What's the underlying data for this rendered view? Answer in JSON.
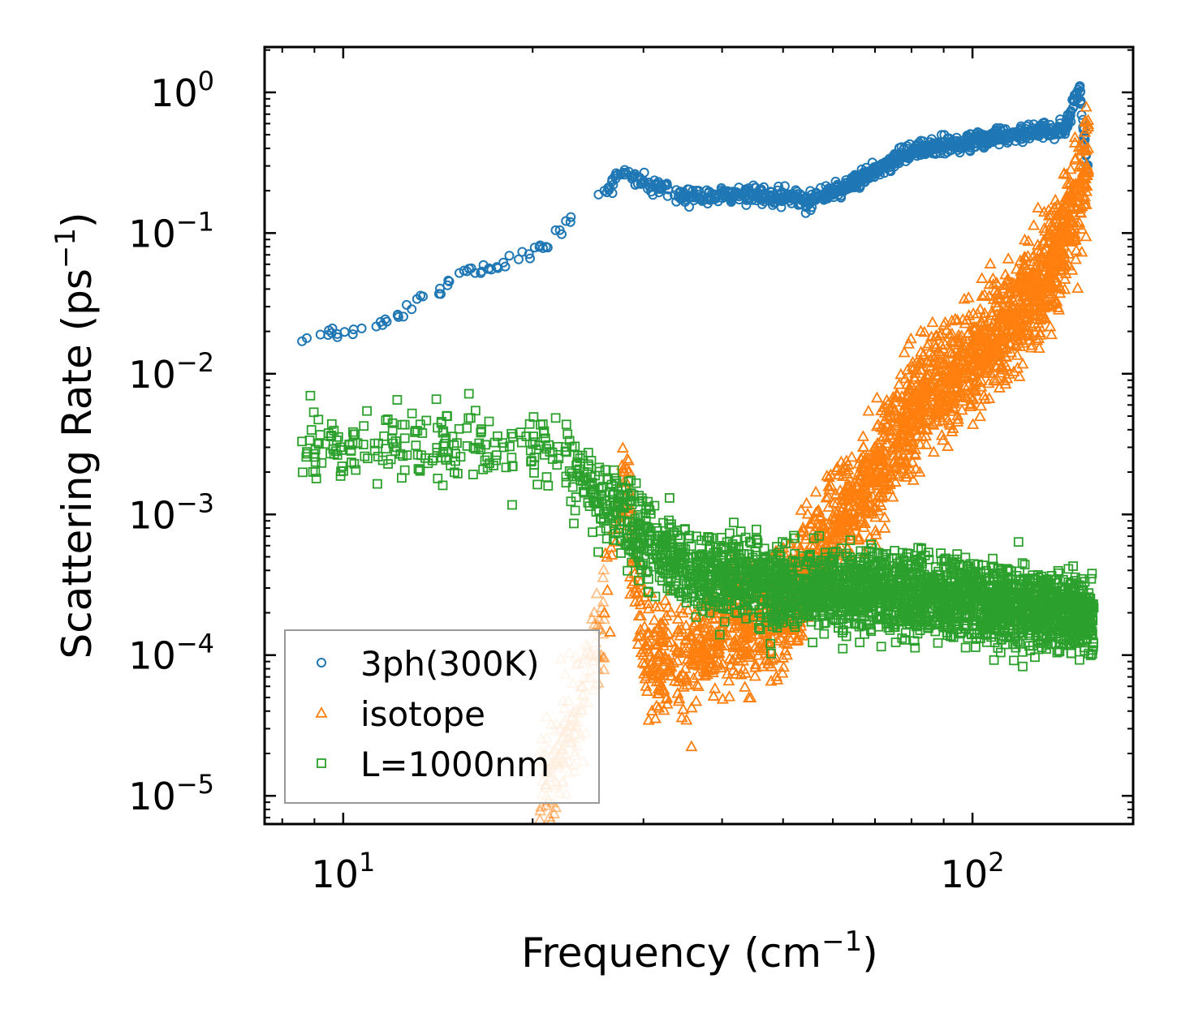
{
  "chart_data": {
    "type": "scatter",
    "title": "",
    "xlabel": "Frequency (cm",
    "xlabel_sup": "−1",
    "xlabel_end": ")",
    "ylabel": "Scattering Rate (ps",
    "ylabel_sup": "−1",
    "ylabel_end": ")",
    "xscale": "log",
    "yscale": "log",
    "xlim": [
      7.5,
      180
    ],
    "ylim": [
      6.3e-06,
      2.1
    ],
    "x_ticks": [
      {
        "value": 10,
        "base": "10",
        "exp": "1"
      },
      {
        "value": 100,
        "base": "10",
        "exp": "2"
      }
    ],
    "y_ticks": [
      {
        "value": 1,
        "base": "10",
        "exp": "0"
      },
      {
        "value": 0.1,
        "base": "10",
        "exp": "−1"
      },
      {
        "value": 0.01,
        "base": "10",
        "exp": "−2"
      },
      {
        "value": 0.001,
        "base": "10",
        "exp": "−3"
      },
      {
        "value": 0.0001,
        "base": "10",
        "exp": "−4"
      },
      {
        "value": 1e-05,
        "base": "10",
        "exp": "−5"
      }
    ],
    "legend_position": "lower-left",
    "series": [
      {
        "name": "3ph(300K)",
        "marker": "circle",
        "color": "#1f77b4",
        "sample_points": [
          [
            8.6,
            0.017
          ],
          [
            9.2,
            0.019
          ],
          [
            10.7,
            0.021
          ],
          [
            12.2,
            0.026
          ],
          [
            13.1,
            0.034
          ],
          [
            14.2,
            0.037
          ],
          [
            15.3,
            0.052
          ],
          [
            17.2,
            0.055
          ],
          [
            19.0,
            0.065
          ],
          [
            21.0,
            0.08
          ],
          [
            23.0,
            0.13
          ],
          [
            26.0,
            0.2
          ],
          [
            28.0,
            0.26
          ],
          [
            35.0,
            0.18
          ],
          [
            45.0,
            0.19
          ],
          [
            55.0,
            0.17
          ],
          [
            65.0,
            0.23
          ],
          [
            80.0,
            0.38
          ],
          [
            100.0,
            0.45
          ],
          [
            120.0,
            0.52
          ],
          [
            140.0,
            0.55
          ],
          [
            148.0,
            1.1
          ],
          [
            152.0,
            0.3
          ]
        ]
      },
      {
        "name": "isotope",
        "marker": "triangle",
        "color": "#ff7f0e",
        "sample_points": [
          [
            21.0,
            1.2e-05
          ],
          [
            24.0,
            6e-05
          ],
          [
            26.0,
            0.0002
          ],
          [
            28.0,
            0.002
          ],
          [
            30.0,
            0.0001
          ],
          [
            33.0,
            8e-05
          ],
          [
            40.0,
            0.00015
          ],
          [
            50.0,
            0.0002
          ],
          [
            60.0,
            0.0008
          ],
          [
            70.0,
            0.002
          ],
          [
            85.0,
            0.008
          ],
          [
            100.0,
            0.012
          ],
          [
            120.0,
            0.03
          ],
          [
            135.0,
            0.06
          ],
          [
            148.0,
            0.2
          ],
          [
            152.0,
            0.3
          ]
        ]
      },
      {
        "name": "L=1000nm",
        "marker": "square",
        "color": "#2ca02c",
        "sample_points": [
          [
            8.6,
            0.0033
          ],
          [
            12.0,
            0.0032
          ],
          [
            15.0,
            0.0031
          ],
          [
            18.0,
            0.003
          ],
          [
            22.0,
            0.0025
          ],
          [
            25.0,
            0.0015
          ],
          [
            28.0,
            0.0009
          ],
          [
            35.0,
            0.0004
          ],
          [
            50.0,
            0.0003
          ],
          [
            70.0,
            0.00028
          ],
          [
            100.0,
            0.00025
          ],
          [
            130.0,
            0.0002
          ],
          [
            155.0,
            0.00018
          ]
        ]
      }
    ]
  }
}
